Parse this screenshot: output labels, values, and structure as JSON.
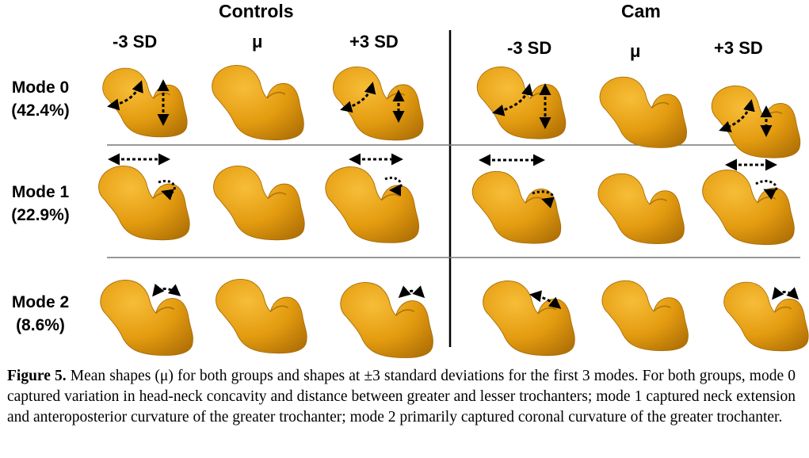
{
  "groups": {
    "left": "Controls",
    "right": "Cam"
  },
  "columns": {
    "left": [
      "-3 SD",
      "μ",
      "+3 SD"
    ],
    "right": [
      "-3 SD",
      "μ",
      "+3 SD"
    ]
  },
  "modes": [
    {
      "name": "Mode 0",
      "pct": "(42.4%)"
    },
    {
      "name": "Mode 1",
      "pct": "(22.9%)"
    },
    {
      "name": "Mode 2",
      "pct": "(8.6%)"
    }
  ],
  "colors": {
    "bone": "#e8a010",
    "bone_dark": "#b87808",
    "bone_light": "#f5b830",
    "arrow": "#000000"
  },
  "caption": {
    "label": "Figure 5.",
    "text": " Mean shapes (μ) for both groups and shapes at ±3 standard deviations for the first 3 modes.  For both groups, mode 0 captured variation in head-neck concavity and distance between greater and lesser trochanters; mode 1 captured neck extension and anteroposterior curvature of the greater trochanter; mode 2 primarily captured coronal curvature of the greater trochanter."
  }
}
